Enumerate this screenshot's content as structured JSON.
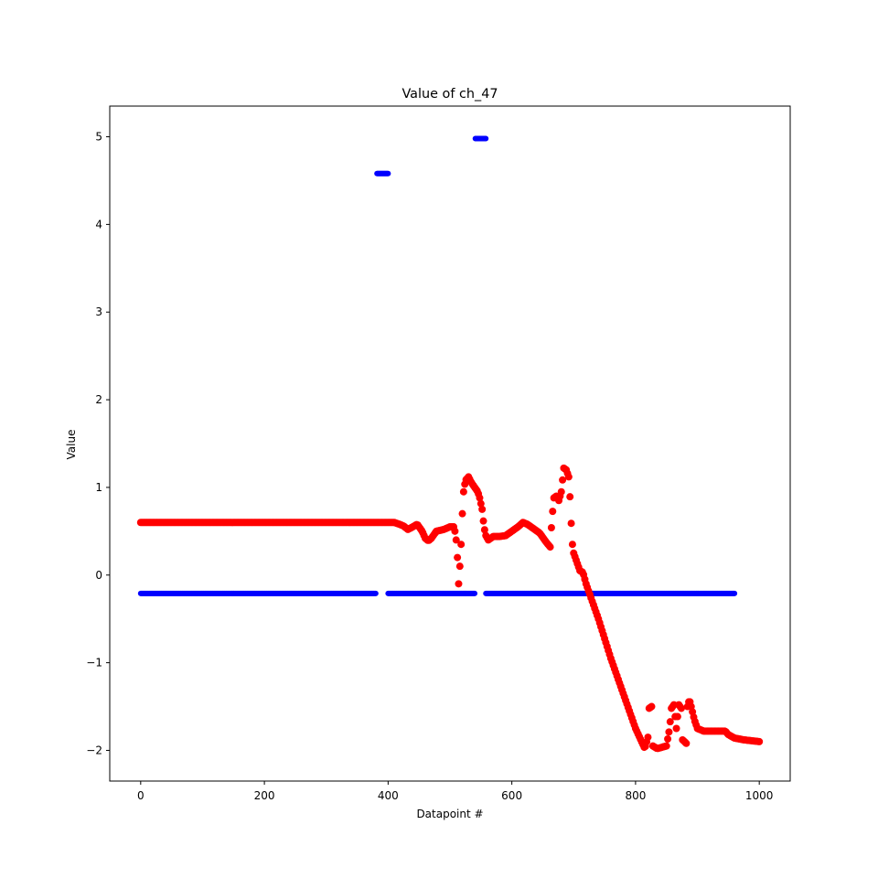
{
  "chart_data": {
    "type": "scatter",
    "title": "Value of ch_47",
    "xlabel": "Datapoint #",
    "ylabel": "Value",
    "xlim": [
      -50,
      1050
    ],
    "ylim": [
      -2.35,
      5.35
    ],
    "xticks": [
      0,
      200,
      400,
      600,
      800,
      1000
    ],
    "yticks": [
      -2,
      -1,
      0,
      1,
      2,
      3,
      4,
      5
    ],
    "grid": false,
    "legend": "none",
    "series": [
      {
        "color": "#0000ff",
        "marker_size": 4,
        "segments": [
          {
            "x_start": 0,
            "x_end": 380,
            "y": -0.21
          },
          {
            "x_start": 382,
            "x_end": 400,
            "y": 4.58
          },
          {
            "x_start": 400,
            "x_end": 540,
            "y": -0.21
          },
          {
            "x_start": 541,
            "x_end": 558,
            "y": 4.98
          },
          {
            "x_start": 558,
            "x_end": 960,
            "y": -0.21
          }
        ]
      },
      {
        "color": "#ff0000",
        "marker_size": 5,
        "step": 2,
        "path": [
          [
            0,
            0.6
          ],
          [
            410,
            0.6
          ],
          [
            418,
            0.58
          ],
          [
            425,
            0.56
          ],
          [
            432,
            0.52
          ],
          [
            440,
            0.55
          ],
          [
            447,
            0.58
          ],
          [
            455,
            0.5
          ],
          [
            460,
            0.42
          ],
          [
            465,
            0.39
          ],
          [
            470,
            0.42
          ],
          [
            478,
            0.5
          ],
          [
            490,
            0.52
          ],
          [
            500,
            0.55
          ],
          [
            507,
            0.55
          ],
          [
            510,
            0.4
          ],
          [
            512,
            0.2
          ],
          [
            514,
            -0.1
          ],
          [
            516,
            0.1
          ],
          [
            518,
            0.35
          ],
          [
            520,
            0.7
          ],
          [
            522,
            0.95
          ],
          [
            525,
            1.08
          ],
          [
            530,
            1.12
          ],
          [
            535,
            1.05
          ],
          [
            540,
            1.0
          ],
          [
            545,
            0.95
          ],
          [
            548,
            0.88
          ],
          [
            552,
            0.75
          ],
          [
            555,
            0.55
          ],
          [
            558,
            0.45
          ],
          [
            562,
            0.4
          ],
          [
            570,
            0.44
          ],
          [
            580,
            0.44
          ],
          [
            590,
            0.45
          ],
          [
            600,
            0.5
          ],
          [
            610,
            0.55
          ],
          [
            618,
            0.6
          ],
          [
            625,
            0.58
          ],
          [
            635,
            0.53
          ],
          [
            645,
            0.48
          ],
          [
            655,
            0.38
          ],
          [
            662,
            0.32
          ],
          [
            665,
            0.65
          ],
          [
            668,
            0.88
          ],
          [
            672,
            0.9
          ],
          [
            676,
            0.85
          ],
          [
            680,
            0.95
          ],
          [
            684,
            1.22
          ],
          [
            688,
            1.2
          ],
          [
            692,
            1.12
          ],
          [
            695,
            0.78
          ],
          [
            697,
            0.4
          ],
          [
            700,
            0.25
          ],
          [
            705,
            0.15
          ],
          [
            710,
            0.05
          ],
          [
            715,
            0.03
          ],
          [
            720,
            -0.1
          ],
          [
            740,
            -0.5
          ],
          [
            760,
            -0.95
          ],
          [
            780,
            -1.35
          ],
          [
            800,
            -1.75
          ],
          [
            815,
            -1.98
          ],
          [
            820,
            -1.85
          ],
          [
            822,
            -1.52
          ],
          [
            826,
            -1.5
          ],
          [
            828,
            -1.95
          ],
          [
            835,
            -1.98
          ],
          [
            850,
            -1.95
          ],
          [
            855,
            -1.75
          ],
          [
            858,
            -1.52
          ],
          [
            862,
            -1.48
          ],
          [
            866,
            -1.75
          ],
          [
            870,
            -1.48
          ],
          [
            874,
            -1.52
          ],
          [
            876,
            -1.88
          ],
          [
            882,
            -1.92
          ],
          [
            884,
            -1.5
          ],
          [
            887,
            -1.42
          ],
          [
            890,
            -1.5
          ],
          [
            895,
            -1.65
          ],
          [
            900,
            -1.75
          ],
          [
            910,
            -1.78
          ],
          [
            930,
            -1.78
          ],
          [
            945,
            -1.78
          ],
          [
            950,
            -1.82
          ],
          [
            960,
            -1.86
          ],
          [
            975,
            -1.88
          ],
          [
            1000,
            -1.9
          ]
        ]
      }
    ]
  }
}
